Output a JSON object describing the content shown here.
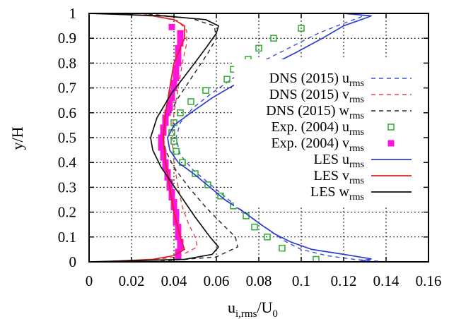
{
  "chart_data": {
    "type": "line",
    "xlabel": {
      "main": "u",
      "sub": "i,rms",
      "tail": "/U",
      "tail_sub": "0"
    },
    "ylabel": "y/H",
    "xlim": [
      0,
      0.16
    ],
    "ylim": [
      0,
      1
    ],
    "xticks": [
      "0",
      "0.02",
      "0.04",
      "0.06",
      "0.08",
      "0.1",
      "0.12",
      "0.14",
      "0.16"
    ],
    "yticks": [
      "0",
      "0.1",
      "0.2",
      "0.3",
      "0.4",
      "0.5",
      "0.6",
      "0.7",
      "0.8",
      "0.9",
      "1"
    ],
    "grid": true,
    "legend_position": "right",
    "series": [
      {
        "name": "DNS (2015) u",
        "sub": "rms",
        "kind": "line",
        "dash": "dashed",
        "color": "#3b4fd8",
        "points": [
          [
            0.14,
            0
          ],
          [
            0.125,
            0.01
          ],
          [
            0.112,
            0.025
          ],
          [
            0.1,
            0.05
          ],
          [
            0.093,
            0.08
          ],
          [
            0.086,
            0.12
          ],
          [
            0.078,
            0.17
          ],
          [
            0.07,
            0.22
          ],
          [
            0.063,
            0.27
          ],
          [
            0.056,
            0.32
          ],
          [
            0.049,
            0.37
          ],
          [
            0.043,
            0.43
          ],
          [
            0.041,
            0.5
          ],
          [
            0.043,
            0.56
          ],
          [
            0.049,
            0.62
          ],
          [
            0.058,
            0.68
          ],
          [
            0.068,
            0.74
          ],
          [
            0.08,
            0.8
          ],
          [
            0.094,
            0.86
          ],
          [
            0.108,
            0.92
          ],
          [
            0.12,
            0.96
          ],
          [
            0.128,
            0.985
          ],
          [
            0.13,
            1
          ]
        ]
      },
      {
        "name": "DNS (2015) v",
        "sub": "rms",
        "kind": "line",
        "dash": "dashed",
        "color": "#e04848",
        "points": [
          [
            0.02,
            0
          ],
          [
            0.042,
            0.02
          ],
          [
            0.051,
            0.06
          ],
          [
            0.05,
            0.1
          ],
          [
            0.047,
            0.15
          ],
          [
            0.044,
            0.22
          ],
          [
            0.042,
            0.3
          ],
          [
            0.04,
            0.4
          ],
          [
            0.039,
            0.5
          ],
          [
            0.04,
            0.6
          ],
          [
            0.042,
            0.7
          ],
          [
            0.044,
            0.8
          ],
          [
            0.046,
            0.88
          ],
          [
            0.046,
            0.93
          ],
          [
            0.042,
            0.97
          ],
          [
            0.025,
            1
          ]
        ]
      },
      {
        "name": "DNS (2015) w",
        "sub": "rms",
        "kind": "line",
        "dash": "dashed",
        "color": "#222222",
        "points": [
          [
            0.03,
            0
          ],
          [
            0.06,
            0.02
          ],
          [
            0.07,
            0.06
          ],
          [
            0.069,
            0.1
          ],
          [
            0.063,
            0.15
          ],
          [
            0.055,
            0.22
          ],
          [
            0.047,
            0.3
          ],
          [
            0.04,
            0.38
          ],
          [
            0.036,
            0.45
          ],
          [
            0.035,
            0.5
          ],
          [
            0.037,
            0.58
          ],
          [
            0.042,
            0.66
          ],
          [
            0.049,
            0.75
          ],
          [
            0.056,
            0.84
          ],
          [
            0.06,
            0.9
          ],
          [
            0.059,
            0.95
          ],
          [
            0.048,
            0.98
          ],
          [
            0.025,
            1
          ]
        ]
      },
      {
        "name": "Exp. (2004) u",
        "sub": "rms",
        "kind": "markers",
        "marker": "square-open",
        "color": "#36b336",
        "points": [
          [
            0.107,
            0.01
          ],
          [
            0.091,
            0.055
          ],
          [
            0.084,
            0.1
          ],
          [
            0.078,
            0.14
          ],
          [
            0.074,
            0.185
          ],
          [
            0.068,
            0.225
          ],
          [
            0.062,
            0.265
          ],
          [
            0.056,
            0.31
          ],
          [
            0.05,
            0.355
          ],
          [
            0.044,
            0.4
          ],
          [
            0.041,
            0.445
          ],
          [
            0.04,
            0.485
          ],
          [
            0.039,
            0.52
          ],
          [
            0.04,
            0.56
          ],
          [
            0.043,
            0.6
          ],
          [
            0.048,
            0.645
          ],
          [
            0.055,
            0.69
          ],
          [
            0.065,
            0.735
          ],
          [
            0.068,
            0.775
          ],
          [
            0.075,
            0.815
          ],
          [
            0.08,
            0.86
          ],
          [
            0.087,
            0.9
          ],
          [
            0.1,
            0.94
          ]
        ]
      },
      {
        "name": "Exp. (2004) v",
        "sub": "rms",
        "kind": "markers",
        "marker": "square-filled",
        "color": "#ff14d9",
        "points": [
          [
            0.042,
            0.02
          ],
          [
            0.042,
            0.04
          ],
          [
            0.043,
            0.06
          ],
          [
            0.043,
            0.08
          ],
          [
            0.042,
            0.1
          ],
          [
            0.042,
            0.12
          ],
          [
            0.042,
            0.14
          ],
          [
            0.041,
            0.16
          ],
          [
            0.041,
            0.18
          ],
          [
            0.041,
            0.2
          ],
          [
            0.04,
            0.22
          ],
          [
            0.04,
            0.24
          ],
          [
            0.039,
            0.26
          ],
          [
            0.039,
            0.28
          ],
          [
            0.038,
            0.3
          ],
          [
            0.038,
            0.32
          ],
          [
            0.037,
            0.34
          ],
          [
            0.037,
            0.36
          ],
          [
            0.036,
            0.38
          ],
          [
            0.036,
            0.4
          ],
          [
            0.035,
            0.42
          ],
          [
            0.035,
            0.44
          ],
          [
            0.034,
            0.46
          ],
          [
            0.034,
            0.48
          ],
          [
            0.034,
            0.5
          ],
          [
            0.035,
            0.52
          ],
          [
            0.035,
            0.54
          ],
          [
            0.036,
            0.56
          ],
          [
            0.036,
            0.58
          ],
          [
            0.037,
            0.6
          ],
          [
            0.038,
            0.62
          ],
          [
            0.038,
            0.64
          ],
          [
            0.039,
            0.66
          ],
          [
            0.039,
            0.68
          ],
          [
            0.04,
            0.7
          ],
          [
            0.04,
            0.72
          ],
          [
            0.041,
            0.74
          ],
          [
            0.041,
            0.76
          ],
          [
            0.041,
            0.78
          ],
          [
            0.042,
            0.8
          ],
          [
            0.042,
            0.82
          ],
          [
            0.042,
            0.84
          ],
          [
            0.042,
            0.86
          ],
          [
            0.043,
            0.88
          ],
          [
            0.043,
            0.9
          ],
          [
            0.043,
            0.92
          ],
          [
            0.039,
            0.945
          ]
        ]
      },
      {
        "name": "LES u",
        "sub": "rms",
        "kind": "line",
        "dash": "solid",
        "color": "#2a3fd0",
        "points": [
          [
            0.127,
            0
          ],
          [
            0.133,
            0.012
          ],
          [
            0.12,
            0.03
          ],
          [
            0.105,
            0.05
          ],
          [
            0.095,
            0.08
          ],
          [
            0.088,
            0.11
          ],
          [
            0.081,
            0.15
          ],
          [
            0.073,
            0.2
          ],
          [
            0.064,
            0.25
          ],
          [
            0.057,
            0.3
          ],
          [
            0.05,
            0.35
          ],
          [
            0.042,
            0.4
          ],
          [
            0.038,
            0.45
          ],
          [
            0.037,
            0.5
          ],
          [
            0.04,
            0.55
          ],
          [
            0.048,
            0.6
          ],
          [
            0.058,
            0.66
          ],
          [
            0.07,
            0.72
          ],
          [
            0.083,
            0.78
          ],
          [
            0.097,
            0.84
          ],
          [
            0.11,
            0.9
          ],
          [
            0.12,
            0.95
          ],
          [
            0.13,
            0.98
          ],
          [
            0.133,
            0.99
          ],
          [
            0.12,
            1
          ]
        ]
      },
      {
        "name": "LES v",
        "sub": "rms",
        "kind": "line",
        "dash": "solid",
        "color": "#e02020",
        "points": [
          [
            0.005,
            0
          ],
          [
            0.03,
            0.01
          ],
          [
            0.04,
            0.025
          ],
          [
            0.045,
            0.05
          ],
          [
            0.043,
            0.1
          ],
          [
            0.04,
            0.2
          ],
          [
            0.038,
            0.3
          ],
          [
            0.036,
            0.4
          ],
          [
            0.035,
            0.5
          ],
          [
            0.036,
            0.6
          ],
          [
            0.038,
            0.7
          ],
          [
            0.04,
            0.8
          ],
          [
            0.045,
            0.9
          ],
          [
            0.045,
            0.95
          ],
          [
            0.04,
            0.975
          ],
          [
            0.03,
            0.99
          ],
          [
            0.005,
            1
          ]
        ]
      },
      {
        "name": "LES w",
        "sub": "rms",
        "kind": "line",
        "dash": "solid",
        "color": "#111111",
        "points": [
          [
            0.0,
            0
          ],
          [
            0.045,
            0.01
          ],
          [
            0.058,
            0.03
          ],
          [
            0.061,
            0.06
          ],
          [
            0.057,
            0.1
          ],
          [
            0.05,
            0.18
          ],
          [
            0.042,
            0.28
          ],
          [
            0.034,
            0.38
          ],
          [
            0.03,
            0.45
          ],
          [
            0.029,
            0.5
          ],
          [
            0.032,
            0.58
          ],
          [
            0.039,
            0.68
          ],
          [
            0.048,
            0.78
          ],
          [
            0.055,
            0.86
          ],
          [
            0.06,
            0.92
          ],
          [
            0.061,
            0.95
          ],
          [
            0.055,
            0.975
          ],
          [
            0.035,
            0.99
          ],
          [
            0.0,
            1
          ]
        ]
      }
    ]
  }
}
